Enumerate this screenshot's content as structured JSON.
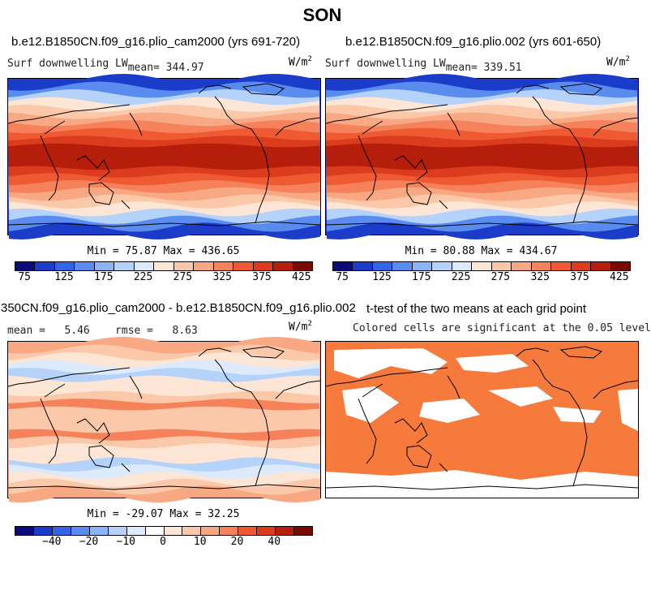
{
  "title": "SON",
  "panels": {
    "p1": {
      "case": "b.e12.B1850CN.f09_g16.plio_cam2000 (yrs 691-720)",
      "var": "Surf downwelling LW",
      "mean": "mean= 344.97",
      "units": "W/m",
      "units_exp": "2",
      "minmax": "Min =  75.87 Max = 436.65"
    },
    "p2": {
      "case": "b.e12.B1850CN.f09_g16.plio.002 (yrs 601-650)",
      "var": "Surf downwelling LW",
      "mean": "mean= 339.51",
      "units": "W/m",
      "units_exp": "2",
      "minmax": "Min =  80.88 Max = 434.67"
    },
    "p3": {
      "case": "350CN.f09_g16.plio_cam2000 - b.e12.B1850CN.f09_g16.plio.002",
      "stats": "mean =   5.46    rmse =   8.63",
      "units": "W/m",
      "units_exp": "2",
      "minmax": "Min = -29.07 Max =  32.25"
    },
    "p4": {
      "title": "t-test of the two means at each grid point",
      "subtitle": "Colored cells are significant at the 0.05 level"
    }
  },
  "colorbars": {
    "abs": {
      "colors": [
        "#0a0a78",
        "#1a3cc8",
        "#3264e6",
        "#5a8cf0",
        "#8cb4fa",
        "#b4d2fa",
        "#dceafc",
        "#fde6d6",
        "#fbc8aa",
        "#f8a882",
        "#f5825a",
        "#ef5a32",
        "#dc3c1e",
        "#b41e0a",
        "#780a00"
      ],
      "ticks": [
        "75",
        "125",
        "175",
        "225",
        "275",
        "325",
        "375",
        "425"
      ]
    },
    "diff": {
      "colors": [
        "#0a0a78",
        "#1a3cc8",
        "#3264e6",
        "#5a8cf0",
        "#8cb4fa",
        "#b4d2fa",
        "#dceafc",
        "#ffffff",
        "#fde6d6",
        "#fbc8aa",
        "#f8a882",
        "#f5825a",
        "#ef5a32",
        "#dc3c1e",
        "#b41e0a",
        "#780a00"
      ],
      "ticks": [
        "−40",
        "−20",
        "−10",
        "0",
        "10",
        "20",
        "40"
      ]
    }
  },
  "map_colors": {
    "abs_bands": [
      "#1a3cc8",
      "#5a8cf0",
      "#b4d2fa",
      "#fde6d6",
      "#fbc8aa",
      "#f8a882",
      "#f5825a",
      "#ef5a32",
      "#dc3c1e",
      "#b41e0a"
    ],
    "diff_bands": [
      "#f8a882",
      "#fbc8aa",
      "#fde6d6",
      "#dceafc",
      "#b4d2fa",
      "#fde6d6",
      "#fde6d6",
      "#fbc8aa",
      "#f5825a",
      "#fbc8aa"
    ],
    "significant": "#f57a3c",
    "not_significant": "#ffffff"
  }
}
